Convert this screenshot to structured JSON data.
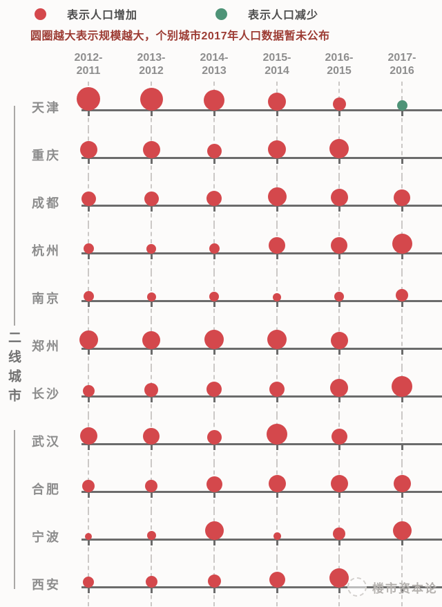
{
  "header": {
    "legend": [
      {
        "label": "表示人口增加",
        "meaning": "increase",
        "color": "#d4484c"
      },
      {
        "label": "表示人口减少",
        "meaning": "decrease",
        "color": "#4e9377"
      }
    ],
    "note": "圆圈越大表示规模越大，个别城市2017年人口数据暂未公布"
  },
  "sidebar": {
    "group_label": "二线城市"
  },
  "watermark": {
    "text": "楼市资本论"
  },
  "chart_data": {
    "type": "scatter",
    "variant": "bubble-grid-timeline",
    "title": "",
    "legend_position": "top",
    "size_encoding": "bubble diameter = relative magnitude of population change (qualitative, px)",
    "colors": {
      "increase": "#d4484c",
      "decrease": "#4e9377"
    },
    "columns": [
      [
        "2012-",
        "2011"
      ],
      [
        "2013-",
        "2012"
      ],
      [
        "2014-",
        "2013"
      ],
      [
        "2015-",
        "2014"
      ],
      [
        "2016-",
        "2015"
      ],
      [
        "2017-",
        "2016"
      ]
    ],
    "rows": [
      {
        "city": "天津",
        "values": [
          {
            "size": 34,
            "change": "increase"
          },
          {
            "size": 33,
            "change": "increase"
          },
          {
            "size": 30,
            "change": "increase"
          },
          {
            "size": 26,
            "change": "increase"
          },
          {
            "size": 19,
            "change": "increase"
          },
          {
            "size": 15,
            "change": "decrease"
          }
        ]
      },
      {
        "city": "重庆",
        "values": [
          {
            "size": 25,
            "change": "increase"
          },
          {
            "size": 25,
            "change": "increase"
          },
          {
            "size": 21,
            "change": "increase"
          },
          {
            "size": 26,
            "change": "increase"
          },
          {
            "size": 28,
            "change": "increase"
          },
          null
        ]
      },
      {
        "city": "成都",
        "values": [
          {
            "size": 21,
            "change": "increase"
          },
          {
            "size": 21,
            "change": "increase"
          },
          {
            "size": 22,
            "change": "increase"
          },
          {
            "size": 27,
            "change": "increase"
          },
          {
            "size": 25,
            "change": "increase"
          },
          {
            "size": 24,
            "change": "increase"
          }
        ]
      },
      {
        "city": "杭州",
        "values": [
          {
            "size": 15,
            "change": "increase"
          },
          {
            "size": 14,
            "change": "increase"
          },
          {
            "size": 15,
            "change": "increase"
          },
          {
            "size": 24,
            "change": "increase"
          },
          {
            "size": 24,
            "change": "increase"
          },
          {
            "size": 29,
            "change": "increase"
          }
        ]
      },
      {
        "city": "南京",
        "values": [
          {
            "size": 15,
            "change": "increase"
          },
          {
            "size": 13,
            "change": "increase"
          },
          {
            "size": 14,
            "change": "increase"
          },
          {
            "size": 12,
            "change": "increase"
          },
          {
            "size": 14,
            "change": "increase"
          },
          {
            "size": 18,
            "change": "increase"
          }
        ]
      },
      {
        "city": "郑州",
        "values": [
          {
            "size": 27,
            "change": "increase"
          },
          {
            "size": 26,
            "change": "increase"
          },
          {
            "size": 28,
            "change": "increase"
          },
          {
            "size": 28,
            "change": "increase"
          },
          {
            "size": 25,
            "change": "increase"
          },
          null
        ]
      },
      {
        "city": "长沙",
        "values": [
          {
            "size": 17,
            "change": "increase"
          },
          {
            "size": 20,
            "change": "increase"
          },
          {
            "size": 22,
            "change": "increase"
          },
          {
            "size": 22,
            "change": "increase"
          },
          {
            "size": 26,
            "change": "increase"
          },
          {
            "size": 30,
            "change": "increase"
          }
        ]
      },
      {
        "city": "武汉",
        "values": [
          {
            "size": 25,
            "change": "increase"
          },
          {
            "size": 24,
            "change": "increase"
          },
          {
            "size": 21,
            "change": "increase"
          },
          {
            "size": 30,
            "change": "increase"
          },
          {
            "size": 23,
            "change": "increase"
          },
          null
        ]
      },
      {
        "city": "合肥",
        "values": [
          {
            "size": 18,
            "change": "increase"
          },
          {
            "size": 18,
            "change": "increase"
          },
          {
            "size": 23,
            "change": "increase"
          },
          {
            "size": 25,
            "change": "increase"
          },
          {
            "size": 25,
            "change": "increase"
          },
          {
            "size": 25,
            "change": "increase"
          }
        ]
      },
      {
        "city": "宁波",
        "values": [
          {
            "size": 10,
            "change": "increase"
          },
          {
            "size": 13,
            "change": "increase"
          },
          {
            "size": 27,
            "change": "increase"
          },
          {
            "size": 11,
            "change": "increase"
          },
          {
            "size": 18,
            "change": "increase"
          },
          {
            "size": 27,
            "change": "increase"
          }
        ]
      },
      {
        "city": "西安",
        "values": [
          {
            "size": 16,
            "change": "increase"
          },
          {
            "size": 17,
            "change": "increase"
          },
          {
            "size": 19,
            "change": "increase"
          },
          {
            "size": 23,
            "change": "increase"
          },
          {
            "size": 28,
            "change": "increase"
          },
          null
        ]
      }
    ]
  }
}
